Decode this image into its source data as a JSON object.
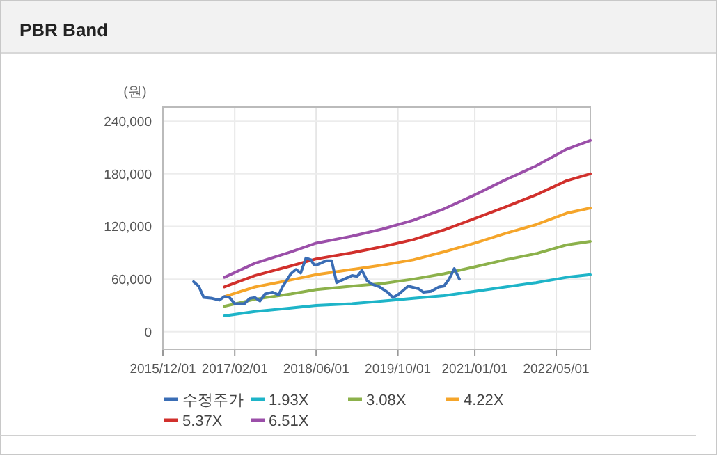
{
  "chart_data": {
    "type": "line",
    "title": "PBR Band",
    "ylabel": "(원)",
    "xlim": [
      "2015-12-01",
      "2022-11-20"
    ],
    "ylim": [
      -20000,
      256000
    ],
    "xticks": [
      {
        "value": "2015-12-01",
        "label": "2015/12/01"
      },
      {
        "value": "2017-02-01",
        "label": "2017/02/01"
      },
      {
        "value": "2018-06-01",
        "label": "2018/06/01"
      },
      {
        "value": "2019-10-01",
        "label": "2019/10/01"
      },
      {
        "value": "2021-01-01",
        "label": "2021/01/01"
      },
      {
        "value": "2022-05-01",
        "label": "2022/05/01"
      }
    ],
    "yticks": [
      {
        "value": 0,
        "label": "0"
      },
      {
        "value": 60000,
        "label": "60,000"
      },
      {
        "value": 120000,
        "label": "120,000"
      },
      {
        "value": 180000,
        "label": "180,000"
      },
      {
        "value": 240000,
        "label": "240,000"
      }
    ],
    "grid": true,
    "legend": "bottom",
    "marker": "none",
    "line_style": "solid",
    "series": [
      {
        "name": "수정주가",
        "color": "#3a6db5",
        "x": [
          "2016-06-01",
          "2016-07-01",
          "2016-08-01",
          "2016-09-20",
          "2016-11-01",
          "2016-12-01",
          "2017-01-01",
          "2017-02-01",
          "2017-04-01",
          "2017-05-01",
          "2017-06-01",
          "2017-07-01",
          "2017-08-01",
          "2017-09-15",
          "2017-10-20",
          "2017-11-15",
          "2018-01-01",
          "2018-02-01",
          "2018-03-01",
          "2018-04-01",
          "2018-05-01",
          "2018-05-20",
          "2018-06-15",
          "2018-08-01",
          "2018-09-01",
          "2018-10-01",
          "2018-11-15",
          "2019-01-01",
          "2019-02-01",
          "2019-03-01",
          "2019-04-01",
          "2019-05-01",
          "2019-06-15",
          "2019-08-01",
          "2019-09-01",
          "2019-10-01",
          "2019-12-01",
          "2020-02-01",
          "2020-03-01",
          "2020-04-15",
          "2020-06-01",
          "2020-07-01",
          "2020-08-01",
          "2020-09-01",
          "2020-10-01"
        ],
        "values": [
          57000,
          52000,
          39000,
          38000,
          36000,
          40000,
          39000,
          32000,
          32000,
          38000,
          39000,
          35000,
          43000,
          45000,
          42000,
          52000,
          66000,
          71000,
          67000,
          84000,
          82000,
          76000,
          77000,
          81000,
          81000,
          56000,
          60000,
          64000,
          63000,
          70000,
          58000,
          54000,
          51000,
          45000,
          39000,
          42000,
          52000,
          49000,
          45000,
          46000,
          51000,
          52000,
          60000,
          72000,
          60000
        ]
      },
      {
        "name": "1.93X",
        "color": "#1eb4c8",
        "x": [
          "2016-12-01",
          "2017-06-01",
          "2018-01-01",
          "2018-06-01",
          "2019-01-01",
          "2019-07-01",
          "2020-01-01",
          "2020-07-01",
          "2021-01-01",
          "2021-07-01",
          "2022-01-01",
          "2022-07-01",
          "2022-11-20"
        ],
        "values": [
          18000,
          23000,
          27000,
          30000,
          32000,
          35000,
          38000,
          41000,
          46000,
          51000,
          56000,
          62000,
          65000
        ]
      },
      {
        "name": "3.08X",
        "color": "#8cb14b",
        "x": [
          "2016-12-01",
          "2017-06-01",
          "2018-01-01",
          "2018-06-01",
          "2019-01-01",
          "2019-07-01",
          "2020-01-01",
          "2020-07-01",
          "2021-01-01",
          "2021-07-01",
          "2022-01-01",
          "2022-07-01",
          "2022-11-20"
        ],
        "values": [
          29000,
          37000,
          43000,
          48000,
          52000,
          55000,
          60000,
          66000,
          74000,
          82000,
          89000,
          99000,
          103000
        ]
      },
      {
        "name": "4.22X",
        "color": "#f5a52a",
        "x": [
          "2016-12-01",
          "2017-06-01",
          "2018-01-01",
          "2018-06-01",
          "2019-01-01",
          "2019-07-01",
          "2020-01-01",
          "2020-07-01",
          "2021-01-01",
          "2021-07-01",
          "2022-01-01",
          "2022-07-01",
          "2022-11-20"
        ],
        "values": [
          40000,
          51000,
          59000,
          65000,
          71000,
          76000,
          82000,
          91000,
          101000,
          112000,
          122000,
          135000,
          141000
        ]
      },
      {
        "name": "5.37X",
        "color": "#d1302c",
        "x": [
          "2016-12-01",
          "2017-06-01",
          "2018-01-01",
          "2018-06-01",
          "2019-01-01",
          "2019-07-01",
          "2020-01-01",
          "2020-07-01",
          "2021-01-01",
          "2021-07-01",
          "2022-01-01",
          "2022-07-01",
          "2022-11-20"
        ],
        "values": [
          51000,
          64000,
          75000,
          83000,
          90000,
          97000,
          105000,
          116000,
          129000,
          142000,
          156000,
          172000,
          180000
        ]
      },
      {
        "name": "6.51X",
        "color": "#9b4fa9",
        "x": [
          "2016-12-01",
          "2017-06-01",
          "2018-01-01",
          "2018-06-01",
          "2019-01-01",
          "2019-07-01",
          "2020-01-01",
          "2020-07-01",
          "2021-01-01",
          "2021-07-01",
          "2022-01-01",
          "2022-07-01",
          "2022-11-20"
        ],
        "values": [
          62000,
          78000,
          91000,
          101000,
          109000,
          117000,
          127000,
          140000,
          156000,
          173000,
          189000,
          208000,
          218000
        ]
      }
    ]
  }
}
